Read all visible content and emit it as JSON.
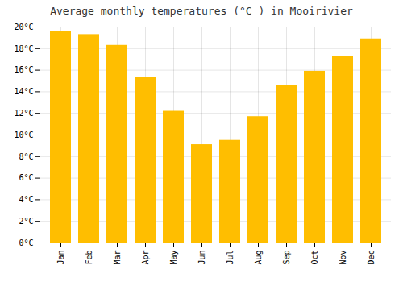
{
  "chart_data": {
    "type": "bar",
    "title": "Average monthly temperatures (°C ) in Mooirivier",
    "categories": [
      "Jan",
      "Feb",
      "Mar",
      "Apr",
      "May",
      "Jun",
      "Jul",
      "Aug",
      "Sep",
      "Oct",
      "Nov",
      "Dec"
    ],
    "values": [
      19.6,
      19.3,
      18.3,
      15.3,
      12.2,
      9.1,
      9.5,
      11.7,
      14.6,
      15.9,
      17.3,
      18.9
    ],
    "color": "#FFBE00",
    "ylim": [
      0,
      20
    ],
    "yticks": [
      {
        "value": 0,
        "label": "0°C"
      },
      {
        "value": 2,
        "label": "2°C"
      },
      {
        "value": 4,
        "label": "4°C"
      },
      {
        "value": 6,
        "label": "6°C"
      },
      {
        "value": 8,
        "label": "8°C"
      },
      {
        "value": 10,
        "label": "10°C"
      },
      {
        "value": 12,
        "label": "12°C"
      },
      {
        "value": 14,
        "label": "14°C"
      },
      {
        "value": 16,
        "label": "16°C"
      },
      {
        "value": 18,
        "label": "18°C"
      },
      {
        "value": 20,
        "label": "20°C"
      }
    ],
    "grid": true
  }
}
